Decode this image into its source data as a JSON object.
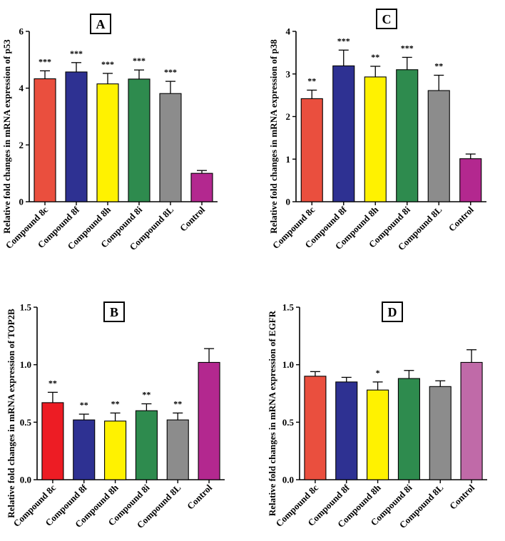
{
  "figure": {
    "background": "#ffffff"
  },
  "chart_data": [
    {
      "type": "bar",
      "panel_label": "A",
      "title": "",
      "xlabel": "",
      "ylabel": "Relative  fold changes in mRNA expression of p53",
      "ylim": [
        0,
        6
      ],
      "ytick_values": [
        0,
        2,
        4,
        6
      ],
      "ytick_labels": [
        "0",
        "2",
        "4",
        "6"
      ],
      "categories": [
        "Compound 8c",
        "Compound 8f",
        "Compound 8h",
        "Compound 8i",
        "Compound 8L",
        "Control"
      ],
      "values": [
        4.33,
        4.57,
        4.15,
        4.32,
        3.81,
        1.0
      ],
      "errors": [
        0.28,
        0.33,
        0.37,
        0.32,
        0.43,
        0.1
      ],
      "significance": [
        "***",
        "***",
        "***",
        "***",
        "***",
        ""
      ],
      "colors": [
        "#ea4f3e",
        "#2e3192",
        "#fff200",
        "#2e8b4e",
        "#8c8c8c",
        "#b3288f"
      ]
    },
    {
      "type": "bar",
      "panel_label": "C",
      "title": "",
      "xlabel": "",
      "ylabel": "Relative  fold changes in mRNA expression of p38",
      "ylim": [
        0,
        4
      ],
      "ytick_values": [
        0,
        1,
        2,
        3,
        4
      ],
      "ytick_labels": [
        "0",
        "1",
        "2",
        "3",
        "4"
      ],
      "categories": [
        "Compound 8c",
        "Compound 8f",
        "Compound 8h",
        "Compound 8i",
        "Compound 8L",
        "Control"
      ],
      "values": [
        2.42,
        3.19,
        2.93,
        3.1,
        2.61,
        1.01
      ],
      "errors": [
        0.2,
        0.37,
        0.25,
        0.29,
        0.36,
        0.11
      ],
      "significance": [
        "**",
        "***",
        "**",
        "***",
        "**",
        ""
      ],
      "colors": [
        "#ea4f3e",
        "#2e3192",
        "#fff200",
        "#2e8b4e",
        "#8c8c8c",
        "#b3288f"
      ]
    },
    {
      "type": "bar",
      "panel_label": "B",
      "title": "",
      "xlabel": "",
      "ylabel": "Relative fold changes in mRNA expression of TOP2B",
      "ylim": [
        0,
        1.5
      ],
      "ytick_values": [
        0,
        0.5,
        1.0,
        1.5
      ],
      "ytick_labels": [
        "0.0",
        "0.5",
        "1.0",
        "1.5"
      ],
      "categories": [
        "Compound 8c",
        "Compound 8f",
        "Compound 8h",
        "Compound 8i",
        "Compound 8L",
        "Control"
      ],
      "values": [
        0.67,
        0.52,
        0.51,
        0.6,
        0.52,
        1.02
      ],
      "errors": [
        0.09,
        0.05,
        0.07,
        0.06,
        0.06,
        0.12
      ],
      "significance": [
        "**",
        "**",
        "**",
        "**",
        "**",
        ""
      ],
      "colors": [
        "#ed1c24",
        "#2e3192",
        "#fff200",
        "#2e8b4e",
        "#8c8c8c",
        "#b3288f"
      ]
    },
    {
      "type": "bar",
      "panel_label": "D",
      "title": "",
      "xlabel": "",
      "ylabel": "Relative  fold changes in mRNA expression of EGFR",
      "ylim": [
        0,
        1.5
      ],
      "ytick_values": [
        0,
        0.5,
        1.0,
        1.5
      ],
      "ytick_labels": [
        "0.0",
        "0.5",
        "1.0",
        "1.5"
      ],
      "categories": [
        "Compound 8c",
        "Compound 8f",
        "Compound 8h",
        "Compound 8i",
        "Compound 8L",
        "Control"
      ],
      "values": [
        0.9,
        0.85,
        0.78,
        0.88,
        0.81,
        1.02
      ],
      "errors": [
        0.04,
        0.04,
        0.07,
        0.07,
        0.05,
        0.11
      ],
      "significance": [
        "",
        "",
        "*",
        "",
        "",
        ""
      ],
      "colors": [
        "#ea4f3e",
        "#2e3192",
        "#fff200",
        "#2e8b4e",
        "#8c8c8c",
        "#c06aa8"
      ]
    }
  ]
}
